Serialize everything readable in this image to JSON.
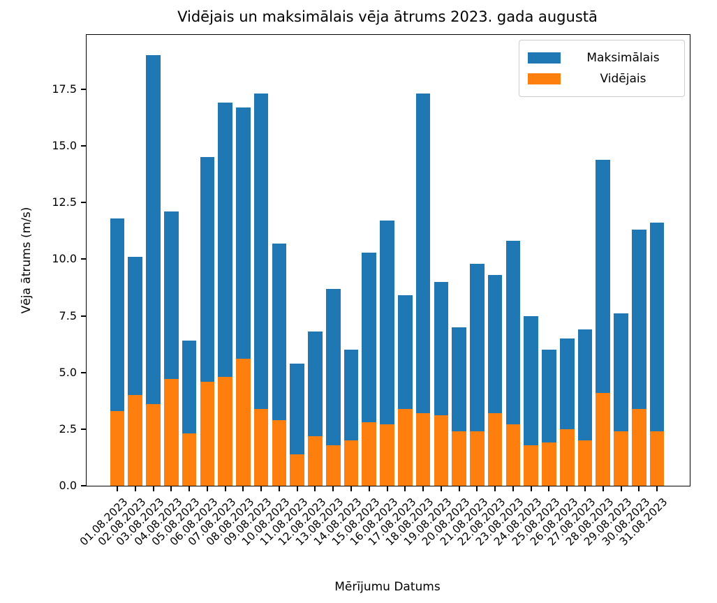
{
  "title": "Vidējais un maksimālais vēja ātrums 2023. gada augustā",
  "axes": {
    "xlabel": "Mērījumu Datums",
    "ylabel": "Vēja ātrums (m/s)",
    "yticks": [
      "0.0",
      "2.5",
      "5.0",
      "7.5",
      "10.0",
      "12.5",
      "15.0",
      "17.5"
    ],
    "ytick_values": [
      0,
      2.5,
      5,
      7.5,
      10,
      12.5,
      15,
      17.5
    ]
  },
  "legend": {
    "position": "upper-right",
    "entries": [
      {
        "label": "Maksimālais",
        "color": "#1f77b4"
      },
      {
        "label": "Vidējais",
        "color": "#ff7f0e"
      }
    ]
  },
  "chart_data": {
    "type": "bar",
    "subtype": "overlaid-bars",
    "title": "Vidējais un maksimālais vēja ātrums 2023. gada augustā",
    "xlabel": "Mērījumu Datums",
    "ylabel": "Vēja ātrums (m/s)",
    "ylim": [
      0,
      19.9
    ],
    "grid": false,
    "legend_position": "upper right",
    "categories": [
      "01.08.2023",
      "02.08.2023",
      "03.08.2023",
      "04.08.2023",
      "05.08.2023",
      "06.08.2023",
      "07.08.2023",
      "08.08.2023",
      "09.08.2023",
      "10.08.2023",
      "11.08.2023",
      "12.08.2023",
      "13.08.2023",
      "14.08.2023",
      "15.08.2023",
      "16.08.2023",
      "17.08.2023",
      "18.08.2023",
      "19.08.2023",
      "20.08.2023",
      "21.08.2023",
      "22.08.2023",
      "23.08.2023",
      "24.08.2023",
      "25.08.2023",
      "26.08.2023",
      "27.08.2023",
      "28.08.2023",
      "29.08.2023",
      "30.08.2023",
      "31.08.2023"
    ],
    "series": [
      {
        "name": "Maksimālais",
        "color": "#1f77b4",
        "values": [
          11.8,
          10.1,
          19.0,
          12.1,
          6.4,
          14.5,
          16.9,
          16.7,
          17.3,
          10.7,
          5.4,
          6.8,
          8.7,
          6.0,
          10.3,
          11.7,
          8.4,
          17.3,
          9.0,
          7.0,
          9.8,
          9.3,
          10.8,
          7.5,
          6.0,
          6.5,
          6.9,
          14.4,
          7.6,
          11.3,
          11.6
        ]
      },
      {
        "name": "Vidējais",
        "color": "#ff7f0e",
        "values": [
          3.3,
          4.0,
          3.6,
          4.7,
          2.3,
          4.6,
          4.8,
          5.6,
          3.4,
          2.9,
          1.4,
          2.2,
          1.8,
          2.0,
          2.8,
          2.7,
          3.4,
          3.2,
          3.1,
          2.4,
          2.4,
          3.2,
          2.7,
          1.8,
          1.9,
          2.5,
          2.0,
          4.1,
          2.4,
          3.4,
          2.4
        ]
      }
    ]
  }
}
